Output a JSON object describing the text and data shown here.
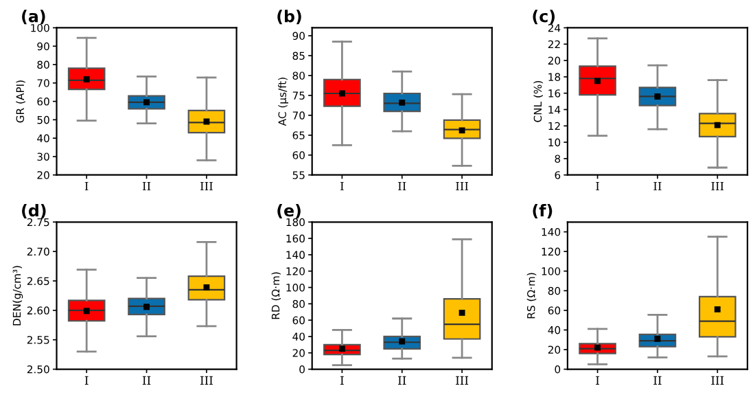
{
  "chart_data": [
    {
      "type": "box",
      "title": "(a)",
      "ylabel": "GR (API)",
      "categories": [
        "I",
        "II",
        "III"
      ],
      "colors": [
        "#ff0000",
        "#0b6fad",
        "#ffc000"
      ],
      "ylim": [
        20,
        100
      ],
      "yticks": [
        20,
        30,
        40,
        50,
        60,
        70,
        80,
        90,
        100
      ],
      "boxes": [
        {
          "low": 49.5,
          "q1": 66.5,
          "median": 71.5,
          "q3": 78,
          "high": 94.5,
          "mean": 72
        },
        {
          "low": 48,
          "q1": 56,
          "median": 59.5,
          "q3": 63,
          "high": 73.5,
          "mean": 59.5
        },
        {
          "low": 28,
          "q1": 43,
          "median": 48.5,
          "q3": 55,
          "high": 73,
          "mean": 49
        }
      ]
    },
    {
      "type": "box",
      "title": "(b)",
      "ylabel": "AC (μs/ft)",
      "categories": [
        "I",
        "II",
        "III"
      ],
      "colors": [
        "#ff0000",
        "#0b6fad",
        "#ffc000"
      ],
      "ylim": [
        55,
        92
      ],
      "yticks": [
        55,
        60,
        65,
        70,
        75,
        80,
        85,
        90
      ],
      "boxes": [
        {
          "low": 62.5,
          "q1": 72.3,
          "median": 75.5,
          "q3": 79,
          "high": 88.5,
          "mean": 75.5
        },
        {
          "low": 66,
          "q1": 71,
          "median": 73,
          "q3": 75.5,
          "high": 81,
          "mean": 73.2
        },
        {
          "low": 57.3,
          "q1": 64.2,
          "median": 66.4,
          "q3": 68.8,
          "high": 75.3,
          "mean": 66.2
        }
      ]
    },
    {
      "type": "box",
      "title": "(c)",
      "ylabel": "CNL (%)",
      "categories": [
        "I",
        "II",
        "III"
      ],
      "colors": [
        "#ff0000",
        "#0b6fad",
        "#ffc000"
      ],
      "ylim": [
        6,
        24
      ],
      "yticks": [
        6,
        8,
        10,
        12,
        14,
        16,
        18,
        20,
        22,
        24
      ],
      "boxes": [
        {
          "low": 10.8,
          "q1": 15.8,
          "median": 17.8,
          "q3": 19.3,
          "high": 22.7,
          "mean": 17.5
        },
        {
          "low": 11.6,
          "q1": 14.5,
          "median": 15.6,
          "q3": 16.7,
          "high": 19.4,
          "mean": 15.6
        },
        {
          "low": 6.9,
          "q1": 10.7,
          "median": 12.3,
          "q3": 13.5,
          "high": 17.6,
          "mean": 12.1
        }
      ]
    },
    {
      "type": "box",
      "title": "(d)",
      "ylabel": "DEN(g/cm³)",
      "categories": [
        "I",
        "II",
        "III"
      ],
      "colors": [
        "#ff0000",
        "#0b6fad",
        "#ffc000"
      ],
      "ylim": [
        2.5,
        2.75
      ],
      "yticks": [
        {
          "value": 2.5,
          "label": "2.50"
        },
        {
          "value": 2.55,
          "label": "2.55"
        },
        {
          "value": 2.6,
          "label": "2.60"
        },
        {
          "value": 2.65,
          "label": "2.65"
        },
        {
          "value": 2.7,
          "label": "2.70"
        },
        {
          "value": 2.75,
          "label": "2.75"
        }
      ],
      "boxes": [
        {
          "low": 2.53,
          "q1": 2.582,
          "median": 2.6,
          "q3": 2.617,
          "high": 2.669,
          "mean": 2.599
        },
        {
          "low": 2.556,
          "q1": 2.593,
          "median": 2.607,
          "q3": 2.62,
          "high": 2.655,
          "mean": 2.606
        },
        {
          "low": 2.573,
          "q1": 2.618,
          "median": 2.635,
          "q3": 2.658,
          "high": 2.716,
          "mean": 2.639
        }
      ]
    },
    {
      "type": "box",
      "title": "(e)",
      "ylabel": "RD (Ω·m)",
      "categories": [
        "I",
        "II",
        "III"
      ],
      "colors": [
        "#ff0000",
        "#0b6fad",
        "#ffc000"
      ],
      "ylim": [
        0,
        180
      ],
      "yticks": [
        0,
        20,
        40,
        60,
        80,
        100,
        120,
        140,
        160,
        180
      ],
      "boxes": [
        {
          "low": 5,
          "q1": 18,
          "median": 23,
          "q3": 30,
          "high": 48,
          "mean": 25
        },
        {
          "low": 13,
          "q1": 25,
          "median": 33,
          "q3": 40,
          "high": 62,
          "mean": 34
        },
        {
          "low": 14,
          "q1": 37,
          "median": 55,
          "q3": 86,
          "high": 159,
          "mean": 69
        }
      ]
    },
    {
      "type": "box",
      "title": "(f)",
      "ylabel": "RS (Ω·m)",
      "categories": [
        "I",
        "II",
        "III"
      ],
      "colors": [
        "#ff0000",
        "#0b6fad",
        "#ffc000"
      ],
      "ylim": [
        0,
        150
      ],
      "yticks": [
        0,
        20,
        40,
        60,
        80,
        100,
        120,
        140
      ],
      "boxes": [
        {
          "low": 5,
          "q1": 16,
          "median": 21,
          "q3": 26,
          "high": 41,
          "mean": 22
        },
        {
          "low": 12,
          "q1": 23,
          "median": 29,
          "q3": 35.5,
          "high": 55.5,
          "mean": 31
        },
        {
          "low": 13,
          "q1": 33,
          "median": 49,
          "q3": 74,
          "high": 135,
          "mean": 61
        }
      ]
    }
  ]
}
